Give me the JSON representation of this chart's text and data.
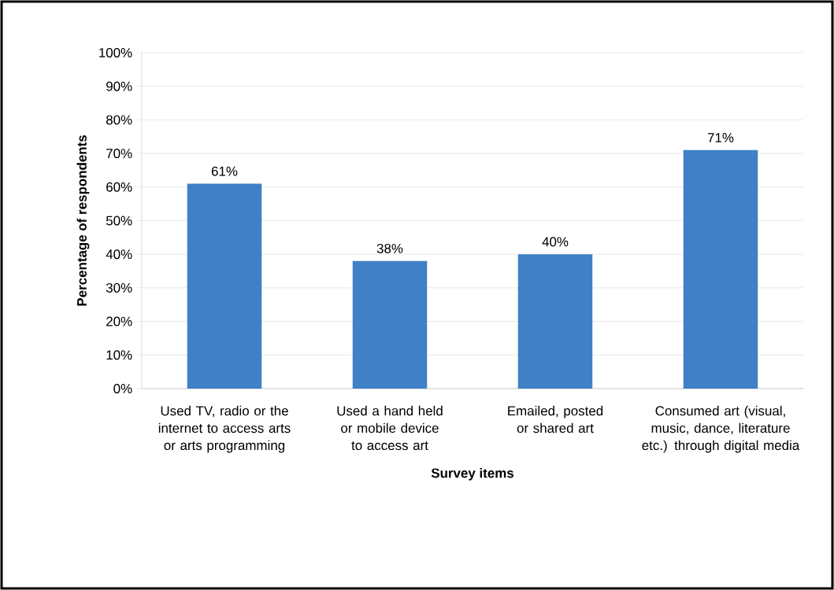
{
  "chart_data": {
    "type": "bar",
    "xlabel": "Survey items",
    "ylabel": "Percentage of respondents",
    "categories": [
      "Used TV, radio or the internet to access arts or arts programming",
      "Used a hand held or mobile device to access art",
      "Emailed, posted or shared art",
      "Consumed art (visual, music, dance, literature etc.) through digital media"
    ],
    "values": [
      61,
      38,
      40,
      71
    ],
    "value_labels": [
      "61%",
      "38%",
      "40%",
      "71%"
    ],
    "color": "#3f80c6",
    "ylim": [
      0,
      100
    ],
    "yticks": [
      {
        "value": 0,
        "label": "0%"
      },
      {
        "value": 10,
        "label": "10%"
      },
      {
        "value": 20,
        "label": "20%"
      },
      {
        "value": 30,
        "label": "30%"
      },
      {
        "value": 40,
        "label": "40%"
      },
      {
        "value": 50,
        "label": "50%"
      },
      {
        "value": 60,
        "label": "60%"
      },
      {
        "value": 70,
        "label": "70%"
      },
      {
        "value": 80,
        "label": "80%"
      },
      {
        "value": 90,
        "label": "90%"
      },
      {
        "value": 100,
        "label": "100%"
      }
    ],
    "grid": "y"
  }
}
